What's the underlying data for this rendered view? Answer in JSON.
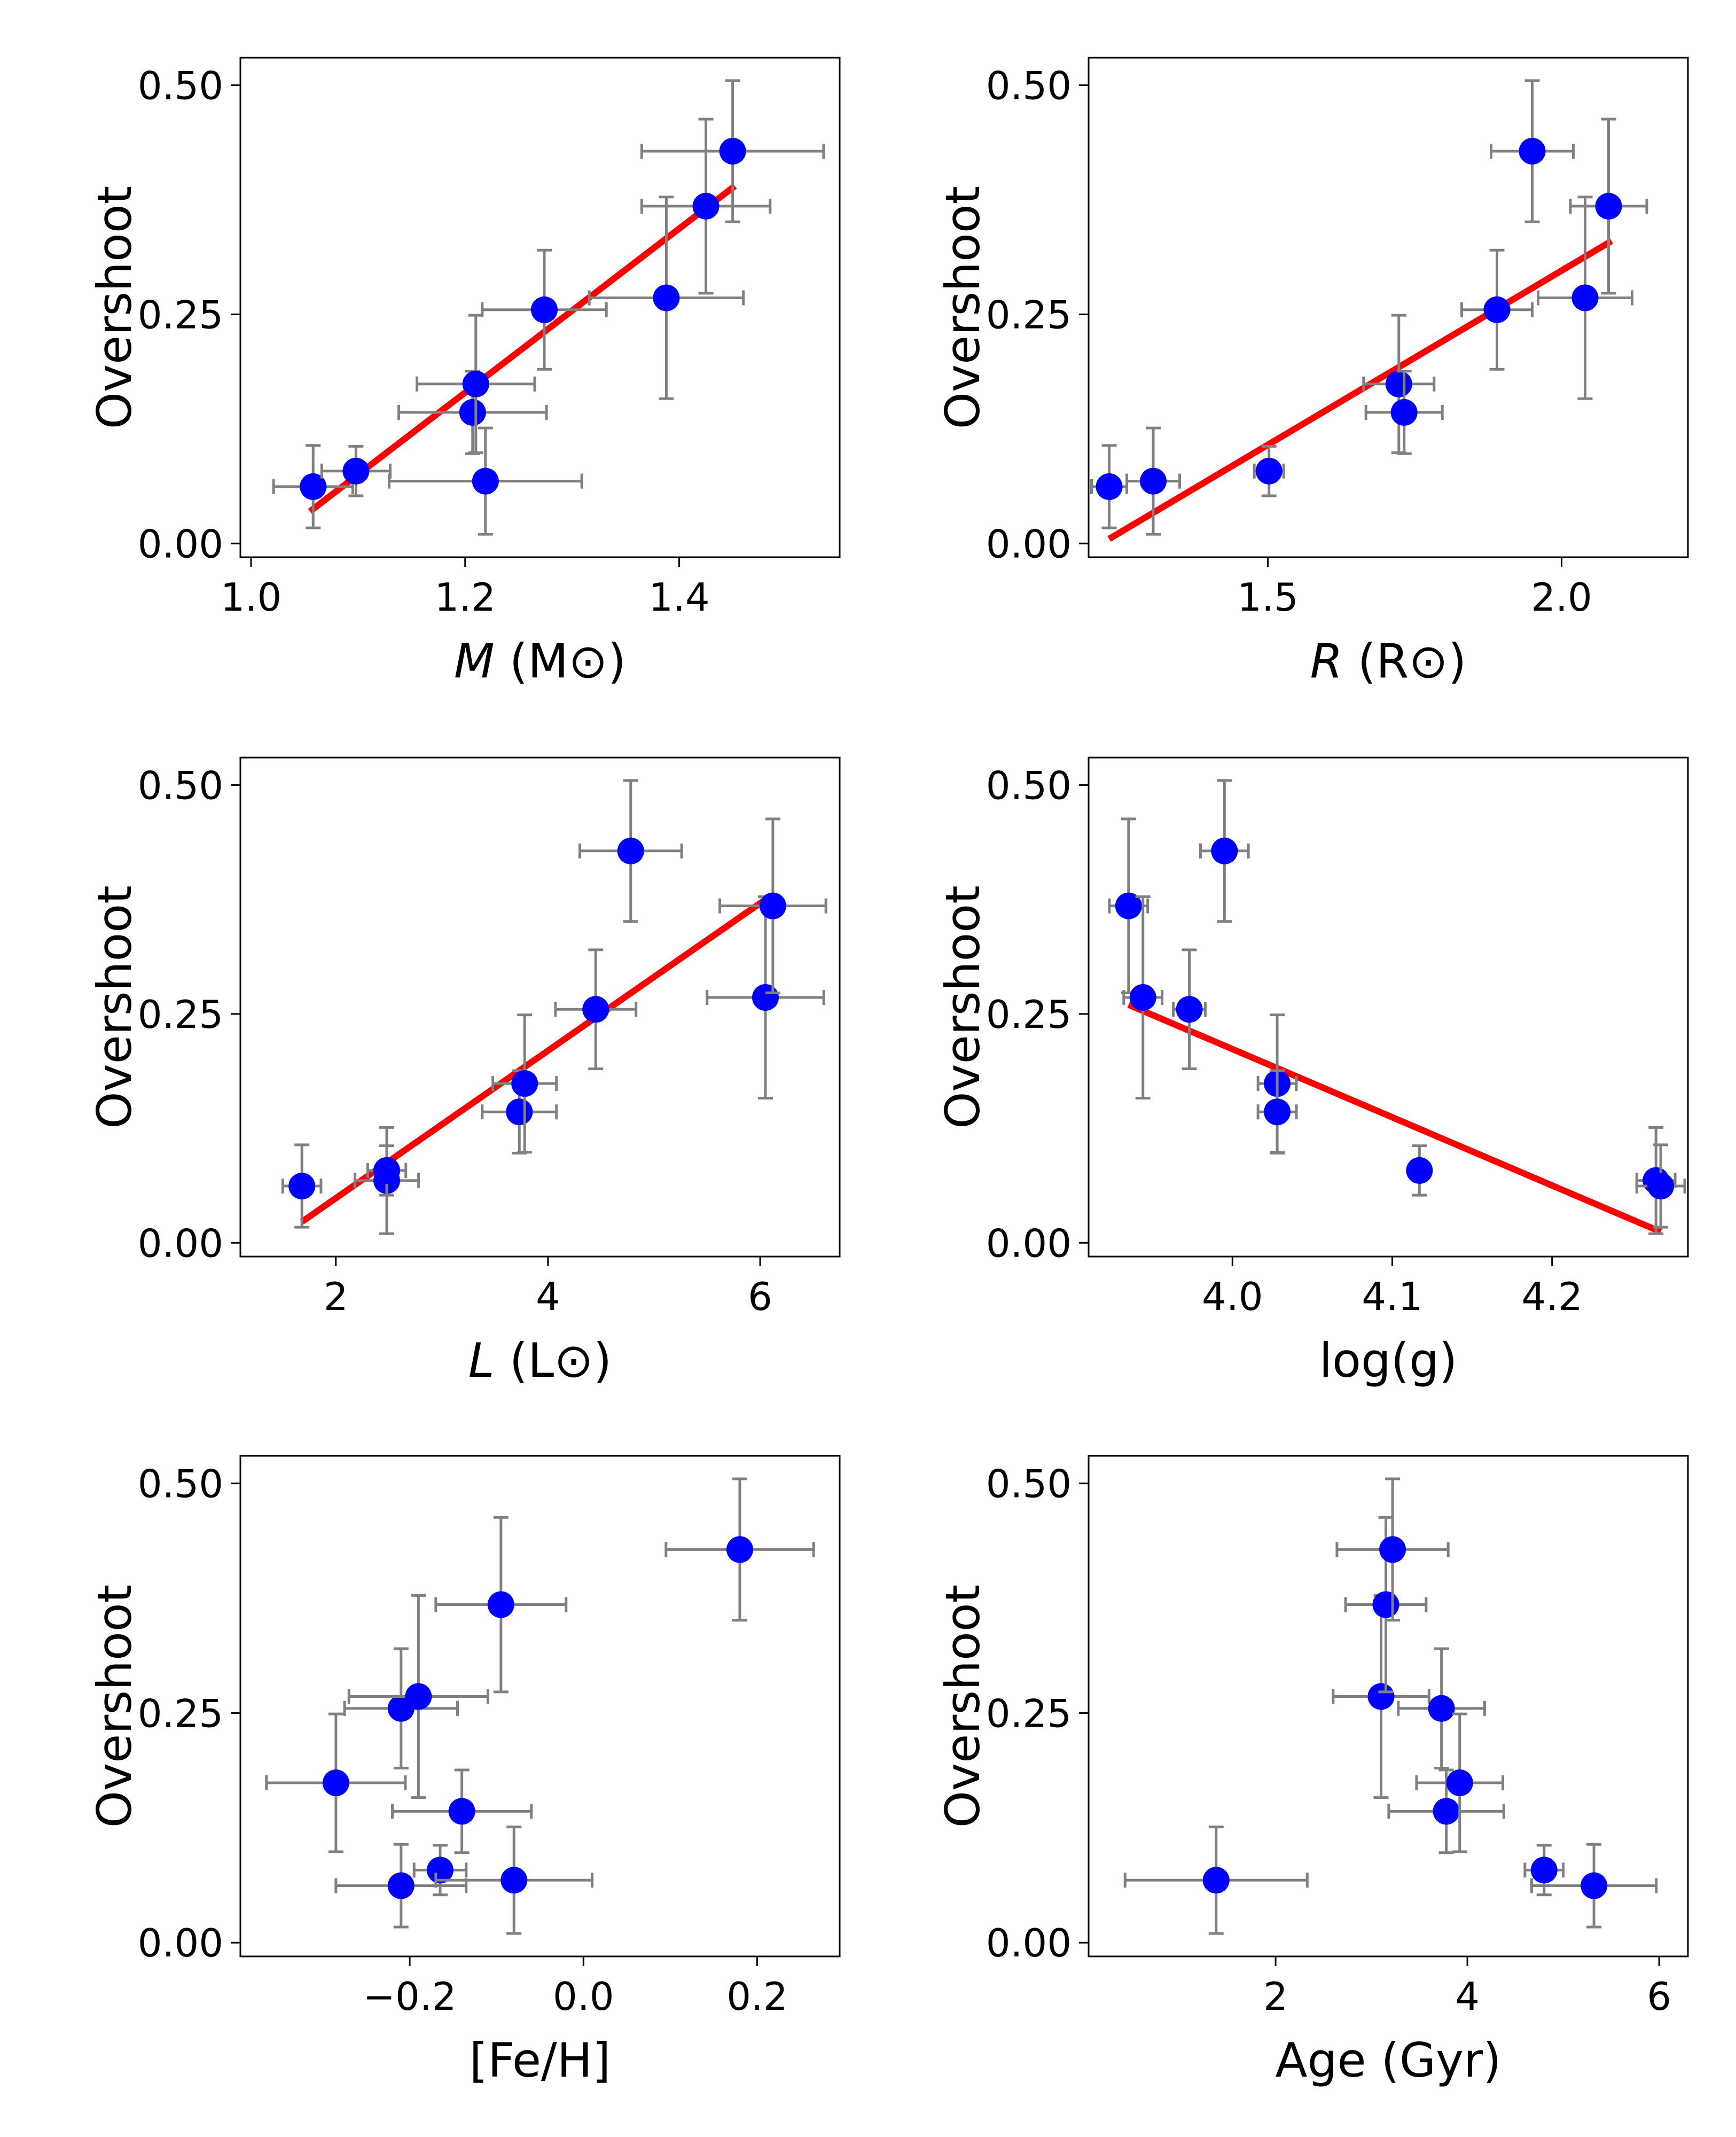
{
  "figure": {
    "marker_color": "#0000ff",
    "errorbar_color": "#808080",
    "fit_color": "#ff0000"
  },
  "chart_data": [
    {
      "id": "mass",
      "type": "scatter",
      "xlabel_italic": "M",
      "xlabel_rest": " (M⊙)",
      "ylabel": "Overshoot",
      "xlim": [
        0.99,
        1.55
      ],
      "ylim": [
        -0.015,
        0.53
      ],
      "xticks": [
        1.0,
        1.2,
        1.4
      ],
      "xtick_labels": [
        "1.0",
        "1.2",
        "1.4"
      ],
      "yticks": [
        0.0,
        0.25,
        0.5
      ],
      "ytick_labels": [
        "0.00",
        "0.25",
        "0.50"
      ],
      "points": [
        {
          "x": 1.058,
          "y": 0.062,
          "xerr": 0.037,
          "yerr": 0.045
        },
        {
          "x": 1.098,
          "y": 0.079,
          "xerr": 0.032,
          "yerr": 0.027
        },
        {
          "x": 1.207,
          "y": 0.143,
          "xerr": 0.069,
          "yerr": 0.045
        },
        {
          "x": 1.21,
          "y": 0.174,
          "xerr": 0.055,
          "yerr": 0.075
        },
        {
          "x": 1.219,
          "y": 0.068,
          "xerr": 0.09,
          "yerr": 0.058
        },
        {
          "x": 1.274,
          "y": 0.255,
          "xerr": 0.058,
          "yerr": 0.065
        },
        {
          "x": 1.388,
          "y": 0.268,
          "xerr": 0.072,
          "yerr": 0.11
        },
        {
          "x": 1.425,
          "y": 0.368,
          "xerr": 0.06,
          "yerr": 0.095
        },
        {
          "x": 1.45,
          "y": 0.428,
          "xerr": 0.085,
          "yerr": 0.077
        }
      ],
      "fit": {
        "x": [
          1.055,
          1.452
        ],
        "y": [
          0.035,
          0.39
        ]
      }
    },
    {
      "id": "radius",
      "type": "scatter",
      "xlabel_italic": "R",
      "xlabel_rest": " (R⊙)",
      "ylabel": "Overshoot",
      "xlim": [
        1.195,
        2.215
      ],
      "ylim": [
        -0.015,
        0.53
      ],
      "xticks": [
        1.5,
        2.0
      ],
      "xtick_labels": [
        "1.5",
        "2.0"
      ],
      "yticks": [
        0.0,
        0.25,
        0.5
      ],
      "ytick_labels": [
        "0.00",
        "0.25",
        "0.50"
      ],
      "points": [
        {
          "x": 1.23,
          "y": 0.062,
          "xerr": 0.03,
          "yerr": 0.045
        },
        {
          "x": 1.305,
          "y": 0.068,
          "xerr": 0.045,
          "yerr": 0.058
        },
        {
          "x": 1.502,
          "y": 0.079,
          "xerr": 0.025,
          "yerr": 0.027
        },
        {
          "x": 1.723,
          "y": 0.174,
          "xerr": 0.06,
          "yerr": 0.075
        },
        {
          "x": 1.732,
          "y": 0.143,
          "xerr": 0.065,
          "yerr": 0.045
        },
        {
          "x": 1.89,
          "y": 0.255,
          "xerr": 0.06,
          "yerr": 0.065
        },
        {
          "x": 1.95,
          "y": 0.428,
          "xerr": 0.07,
          "yerr": 0.077
        },
        {
          "x": 2.04,
          "y": 0.268,
          "xerr": 0.08,
          "yerr": 0.11
        },
        {
          "x": 2.08,
          "y": 0.368,
          "xerr": 0.065,
          "yerr": 0.095
        }
      ],
      "fit": {
        "x": [
          1.23,
          2.085
        ],
        "y": [
          0.005,
          0.33
        ]
      }
    },
    {
      "id": "luminosity",
      "type": "scatter",
      "xlabel_italic": "L",
      "xlabel_rest": " (L⊙)",
      "ylabel": "Overshoot",
      "xlim": [
        1.1,
        6.75
      ],
      "ylim": [
        -0.015,
        0.53
      ],
      "xticks": [
        2,
        4,
        6
      ],
      "xtick_labels": [
        "2",
        "4",
        "6"
      ],
      "yticks": [
        0.0,
        0.25,
        0.5
      ],
      "ytick_labels": [
        "0.00",
        "0.25",
        "0.50"
      ],
      "points": [
        {
          "x": 1.68,
          "y": 0.062,
          "xerr": 0.18,
          "yerr": 0.045
        },
        {
          "x": 2.48,
          "y": 0.068,
          "xerr": 0.3,
          "yerr": 0.058
        },
        {
          "x": 2.48,
          "y": 0.079,
          "xerr": 0.18,
          "yerr": 0.027
        },
        {
          "x": 3.73,
          "y": 0.143,
          "xerr": 0.35,
          "yerr": 0.045
        },
        {
          "x": 3.78,
          "y": 0.174,
          "xerr": 0.3,
          "yerr": 0.075
        },
        {
          "x": 4.45,
          "y": 0.255,
          "xerr": 0.38,
          "yerr": 0.065
        },
        {
          "x": 4.78,
          "y": 0.428,
          "xerr": 0.48,
          "yerr": 0.077
        },
        {
          "x": 6.05,
          "y": 0.268,
          "xerr": 0.55,
          "yerr": 0.11
        },
        {
          "x": 6.12,
          "y": 0.368,
          "xerr": 0.5,
          "yerr": 0.095
        }
      ],
      "fit": {
        "x": [
          1.68,
          6.05
        ],
        "y": [
          0.023,
          0.375
        ]
      }
    },
    {
      "id": "logg",
      "type": "scatter",
      "xlabel_italic": "",
      "xlabel_rest": "log(g)",
      "ylabel": "Overshoot",
      "xlim": [
        3.91,
        4.285
      ],
      "ylim": [
        -0.015,
        0.53
      ],
      "xticks": [
        4.0,
        4.1,
        4.2
      ],
      "xtick_labels": [
        "4.0",
        "4.1",
        "4.2"
      ],
      "yticks": [
        0.0,
        0.25,
        0.5
      ],
      "ytick_labels": [
        "0.00",
        "0.25",
        "0.50"
      ],
      "points": [
        {
          "x": 3.935,
          "y": 0.368,
          "xerr": 0.012,
          "yerr": 0.095
        },
        {
          "x": 3.944,
          "y": 0.268,
          "xerr": 0.012,
          "yerr": 0.11
        },
        {
          "x": 3.973,
          "y": 0.255,
          "xerr": 0.01,
          "yerr": 0.065
        },
        {
          "x": 3.995,
          "y": 0.428,
          "xerr": 0.015,
          "yerr": 0.077
        },
        {
          "x": 4.028,
          "y": 0.174,
          "xerr": 0.012,
          "yerr": 0.075
        },
        {
          "x": 4.028,
          "y": 0.143,
          "xerr": 0.012,
          "yerr": 0.045
        },
        {
          "x": 4.117,
          "y": 0.079,
          "xerr": 0.005,
          "yerr": 0.027
        },
        {
          "x": 4.265,
          "y": 0.068,
          "xerr": 0.012,
          "yerr": 0.058
        },
        {
          "x": 4.268,
          "y": 0.062,
          "xerr": 0.015,
          "yerr": 0.045
        }
      ],
      "fit": {
        "x": [
          3.935,
          4.268
        ],
        "y": [
          0.26,
          0.012
        ]
      }
    },
    {
      "id": "feh",
      "type": "scatter",
      "xlabel_italic": "",
      "xlabel_rest": "[Fe/H]",
      "ylabel": "Overshoot",
      "xlim": [
        -0.395,
        0.295
      ],
      "ylim": [
        -0.015,
        0.53
      ],
      "xticks": [
        -0.2,
        0.0,
        0.2
      ],
      "xtick_labels": [
        "−0.2",
        "0.0",
        "0.2"
      ],
      "yticks": [
        0.0,
        0.25,
        0.5
      ],
      "ytick_labels": [
        "0.00",
        "0.25",
        "0.50"
      ],
      "points": [
        {
          "x": -0.285,
          "y": 0.174,
          "xerr": 0.08,
          "yerr": 0.075
        },
        {
          "x": -0.21,
          "y": 0.062,
          "xerr": 0.075,
          "yerr": 0.045
        },
        {
          "x": -0.21,
          "y": 0.255,
          "xerr": 0.065,
          "yerr": 0.065
        },
        {
          "x": -0.19,
          "y": 0.268,
          "xerr": 0.08,
          "yerr": 0.11
        },
        {
          "x": -0.165,
          "y": 0.079,
          "xerr": 0.03,
          "yerr": 0.027
        },
        {
          "x": -0.14,
          "y": 0.143,
          "xerr": 0.08,
          "yerr": 0.045
        },
        {
          "x": -0.095,
          "y": 0.368,
          "xerr": 0.075,
          "yerr": 0.095
        },
        {
          "x": -0.08,
          "y": 0.068,
          "xerr": 0.09,
          "yerr": 0.058
        },
        {
          "x": 0.18,
          "y": 0.428,
          "xerr": 0.085,
          "yerr": 0.077
        }
      ]
    },
    {
      "id": "age",
      "type": "scatter",
      "xlabel_italic": "",
      "xlabel_rest": "Age (Gyr)",
      "ylabel": "Overshoot",
      "xlim": [
        0.05,
        6.3
      ],
      "ylim": [
        -0.015,
        0.53
      ],
      "xticks": [
        2,
        4,
        6
      ],
      "xtick_labels": [
        "2",
        "4",
        "6"
      ],
      "yticks": [
        0.0,
        0.25,
        0.5
      ],
      "ytick_labels": [
        "0.00",
        "0.25",
        "0.50"
      ],
      "points": [
        {
          "x": 1.38,
          "y": 0.068,
          "xerr": 0.95,
          "yerr": 0.058
        },
        {
          "x": 3.1,
          "y": 0.268,
          "xerr": 0.5,
          "yerr": 0.11
        },
        {
          "x": 3.15,
          "y": 0.368,
          "xerr": 0.42,
          "yerr": 0.095
        },
        {
          "x": 3.22,
          "y": 0.428,
          "xerr": 0.58,
          "yerr": 0.077
        },
        {
          "x": 3.73,
          "y": 0.255,
          "xerr": 0.45,
          "yerr": 0.065
        },
        {
          "x": 3.78,
          "y": 0.143,
          "xerr": 0.6,
          "yerr": 0.045
        },
        {
          "x": 3.92,
          "y": 0.174,
          "xerr": 0.45,
          "yerr": 0.075
        },
        {
          "x": 4.8,
          "y": 0.079,
          "xerr": 0.2,
          "yerr": 0.027
        },
        {
          "x": 5.32,
          "y": 0.062,
          "xerr": 0.65,
          "yerr": 0.045
        }
      ]
    }
  ]
}
